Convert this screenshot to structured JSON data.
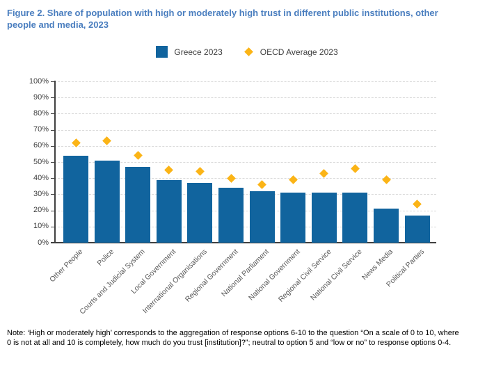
{
  "title": "Figure 2. Share of population with high or moderately high trust in different public institutions, other people and media, 2023",
  "legend": {
    "greece": "Greece 2023",
    "oecd": "OECD Average 2023"
  },
  "note": "Note: ‘High or moderately high’ corresponds to the aggregation of response options 6-10 to the question “On a scale of 0 to 10, where 0 is not at all and 10 is completely, how much do you trust [institution]?”; neutral to option 5 and “low or no” to response options 0-4.",
  "colors": {
    "title": "#4a7ebf",
    "bar": "#11649e",
    "diamond": "#fbb416",
    "axis": "#404040",
    "grid": "#d9d9d9",
    "ytick_label": "#404040",
    "category_label": "#595959"
  },
  "chart_data": {
    "type": "bar",
    "title": "Share of population with high or moderately high trust in different public institutions, other people and media, 2023",
    "categories": [
      "Other People",
      "Police",
      "Courts and Judicial System",
      "Local Government",
      "International Organisations",
      "Regional Government",
      "National Parliament",
      "National Government",
      "Regional Civil Service",
      "National Civil Service",
      "News Media",
      "Political Parties"
    ],
    "series": [
      {
        "name": "Greece 2023",
        "type": "bar",
        "color": "#11649e",
        "values": [
          54,
          51,
          47,
          39,
          37,
          34,
          32,
          31,
          31,
          31,
          21,
          17
        ]
      },
      {
        "name": "OECD Average 2023",
        "type": "scatter",
        "marker": "diamond",
        "color": "#fbb416",
        "values": [
          62,
          63,
          54,
          45,
          44,
          40,
          36,
          39,
          43,
          46,
          39,
          24
        ]
      }
    ],
    "xlabel": "",
    "ylabel": "",
    "ylim": [
      0,
      100
    ],
    "yticks": [
      "0%",
      "10%",
      "20%",
      "30%",
      "40%",
      "50%",
      "60%",
      "70%",
      "80%",
      "90%",
      "100%"
    ],
    "grid": "horizontal-dashed",
    "legend_position": "top-center"
  }
}
